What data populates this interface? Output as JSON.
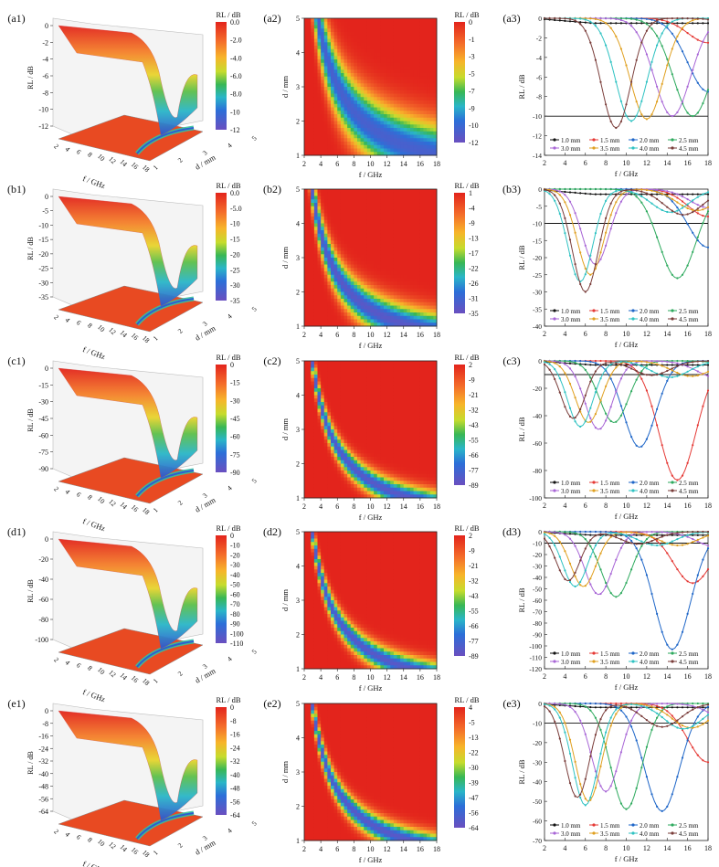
{
  "figure": {
    "panel_labels": {
      "a1": "(a1)",
      "a2": "(a2)",
      "a3": "(a3)",
      "b1": "(b1)",
      "b2": "(b2)",
      "b3": "(b3)",
      "c1": "(c1)",
      "c2": "(c2)",
      "c3": "(c3)",
      "d1": "(d1)",
      "d2": "(d2)",
      "d3": "(d3)",
      "e1": "(e1)",
      "e2": "(e2)",
      "e3": "(e3)"
    },
    "colorbar_title": "RL / dB",
    "xlabel_f": "f / GHz",
    "ylabel_d": "d / mm",
    "ylabel_rl": "RL / dB"
  },
  "chart_data": [
    {
      "id": "a1",
      "type": "surface3d",
      "title": "",
      "xlabel": "f / GHz",
      "ylabel": "d / mm",
      "zlabel": "RL / dB",
      "xticks": [
        "2",
        "4",
        "6",
        "8",
        "10",
        "12",
        "14",
        "16",
        "18"
      ],
      "yticks": [
        "1",
        "2",
        "3",
        "4",
        "5"
      ],
      "zticks": [
        "0",
        "-2",
        "-4",
        "-6",
        "-8",
        "-10",
        "-12"
      ],
      "zlim": [
        -12,
        0
      ],
      "colorbar": {
        "title": "RL / dB",
        "ticks": [
          "0.0",
          "-2.0",
          "-4.0",
          "-6.0",
          "-8.0",
          "-10",
          "-12"
        ]
      }
    },
    {
      "id": "a2",
      "type": "heatmap",
      "xlabel": "f / GHz",
      "ylabel": "d / mm",
      "xticks": [
        "2",
        "4",
        "6",
        "8",
        "10",
        "12",
        "14",
        "16",
        "18"
      ],
      "yticks": [
        "1",
        "2",
        "3",
        "4",
        "5"
      ],
      "xlim": [
        2,
        18
      ],
      "ylim": [
        1,
        5
      ],
      "min_db": -12,
      "colorbar": {
        "title": "RL / dB",
        "ticks": [
          "0",
          "-1",
          "-3",
          "-5",
          "-7",
          "-9",
          "-10",
          "-12"
        ]
      }
    },
    {
      "id": "a3",
      "type": "line",
      "xlabel": "f / GHz",
      "ylabel": "RL / dB",
      "xlim": [
        2,
        18
      ],
      "ylim": [
        -14,
        0
      ],
      "xticks": [
        "2",
        "4",
        "6",
        "8",
        "10",
        "12",
        "14",
        "16",
        "18"
      ],
      "yticks": [
        "0",
        "-2",
        "-4",
        "-6",
        "-8",
        "-10",
        "-12",
        "-14"
      ],
      "reference_line": -10,
      "series": [
        {
          "name": "1.0 mm",
          "f0": null,
          "min": -0.5
        },
        {
          "name": "1.5 mm",
          "f0": 18,
          "min": -2.5
        },
        {
          "name": "2.0 mm",
          "f0": 18,
          "min": -7.5
        },
        {
          "name": "2.5 mm",
          "f0": 16.5,
          "min": -10.0
        },
        {
          "name": "3.0 mm",
          "f0": 14.5,
          "min": -10.0
        },
        {
          "name": "3.5 mm",
          "f0": 12,
          "min": -10.3
        },
        {
          "name": "4.0 mm",
          "f0": 10.5,
          "min": -10.5
        },
        {
          "name": "4.5 mm",
          "f0": 9,
          "min": -11.2
        }
      ]
    },
    {
      "id": "b1",
      "type": "surface3d",
      "xlabel": "f / GHz",
      "ylabel": "d / mm",
      "zlabel": "RL / dB",
      "xticks": [
        "2",
        "4",
        "6",
        "8",
        "10",
        "12",
        "14",
        "16",
        "18"
      ],
      "yticks": [
        "1",
        "2",
        "3",
        "4",
        "5"
      ],
      "zticks": [
        "0",
        "-5",
        "-10",
        "-15",
        "-20",
        "-25",
        "-30",
        "-35"
      ],
      "zlim": [
        -35,
        0
      ],
      "colorbar": {
        "title": "RL / dB",
        "ticks": [
          "0.0",
          "-5.0",
          "-10",
          "-15",
          "-20",
          "-25",
          "-30",
          "-35"
        ]
      }
    },
    {
      "id": "b2",
      "type": "heatmap",
      "xlabel": "f / GHz",
      "ylabel": "d / mm",
      "xticks": [
        "2",
        "4",
        "6",
        "8",
        "10",
        "12",
        "14",
        "16",
        "18"
      ],
      "yticks": [
        "1",
        "2",
        "3",
        "4",
        "5"
      ],
      "xlim": [
        2,
        18
      ],
      "ylim": [
        1,
        5
      ],
      "min_db": -35,
      "colorbar": {
        "title": "RL / dB",
        "ticks": [
          "1",
          "-4",
          "-9",
          "-13",
          "-17",
          "-22",
          "-26",
          "-31",
          "-35"
        ]
      }
    },
    {
      "id": "b3",
      "type": "line",
      "xlabel": "f / GHz",
      "ylabel": "RL / dB",
      "xlim": [
        2,
        18
      ],
      "ylim": [
        -40,
        0
      ],
      "xticks": [
        "2",
        "4",
        "6",
        "8",
        "10",
        "12",
        "14",
        "16",
        "18"
      ],
      "yticks": [
        "0",
        "-5",
        "-10",
        "-15",
        "-20",
        "-25",
        "-30",
        "-35",
        "-40"
      ],
      "reference_line": -10,
      "series": [
        {
          "name": "1.0 mm",
          "f0": null,
          "min": -1.5
        },
        {
          "name": "1.5 mm",
          "f0": 18,
          "min": -8
        },
        {
          "name": "2.0 mm",
          "f0": 18,
          "min": -17
        },
        {
          "name": "2.5 mm",
          "f0": 15,
          "min": -26
        },
        {
          "name": "3.0 mm",
          "f0": 7,
          "min": -22
        },
        {
          "name": "3.5 mm",
          "f0": 6.5,
          "min": -25
        },
        {
          "name": "4.0 mm",
          "f0": 5.5,
          "min": -27
        },
        {
          "name": "4.5 mm",
          "f0": 6,
          "min": -30
        }
      ]
    },
    {
      "id": "c1",
      "type": "surface3d",
      "xlabel": "f / GHz",
      "ylabel": "d / mm",
      "zlabel": "RL / dB",
      "xticks": [
        "2",
        "4",
        "6",
        "8",
        "10",
        "12",
        "14",
        "16",
        "18"
      ],
      "yticks": [
        "1",
        "2",
        "3",
        "4",
        "5"
      ],
      "zticks": [
        "0",
        "-15",
        "-30",
        "-45",
        "-60",
        "-75",
        "-90"
      ],
      "zlim": [
        -90,
        0
      ],
      "colorbar": {
        "title": "RL / dB",
        "ticks": [
          "0",
          "-15",
          "-30",
          "-45",
          "-60",
          "-75",
          "-90"
        ]
      }
    },
    {
      "id": "c2",
      "type": "heatmap",
      "xlabel": "f / GHz",
      "ylabel": "d / mm",
      "xticks": [
        "2",
        "4",
        "6",
        "8",
        "10",
        "12",
        "14",
        "16",
        "18"
      ],
      "yticks": [
        "1",
        "2",
        "3",
        "4",
        "5"
      ],
      "xlim": [
        2,
        18
      ],
      "ylim": [
        1,
        5
      ],
      "min_db": -89,
      "colorbar": {
        "title": "RL / dB",
        "ticks": [
          "2",
          "-9",
          "-21",
          "-32",
          "-43",
          "-55",
          "-66",
          "-77",
          "-89"
        ]
      }
    },
    {
      "id": "c3",
      "type": "line",
      "xlabel": "f / GHz",
      "ylabel": "RL / dB",
      "xlim": [
        2,
        18
      ],
      "ylim": [
        -100,
        0
      ],
      "xticks": [
        "2",
        "4",
        "6",
        "8",
        "10",
        "12",
        "14",
        "16",
        "18"
      ],
      "yticks": [
        "0",
        "-20",
        "-40",
        "-60",
        "-80",
        "-100"
      ],
      "reference_line": -10,
      "series": [
        {
          "name": "1.0 mm",
          "f0": null,
          "min": -3
        },
        {
          "name": "1.5 mm",
          "f0": 15,
          "min": -87
        },
        {
          "name": "2.0 mm",
          "f0": 11.3,
          "min": -63
        },
        {
          "name": "2.5 mm",
          "f0": 8.8,
          "min": -45
        },
        {
          "name": "3.0 mm",
          "f0": 7.3,
          "min": -50
        },
        {
          "name": "3.5 mm",
          "f0": 6.3,
          "min": -45
        },
        {
          "name": "4.0 mm",
          "f0": 5.5,
          "min": -48
        },
        {
          "name": "4.5 mm",
          "f0": 4.8,
          "min": -42
        }
      ]
    },
    {
      "id": "d1",
      "type": "surface3d",
      "xlabel": "f / GHz",
      "ylabel": "d / mm",
      "zlabel": "RL / dB",
      "xticks": [
        "2",
        "4",
        "6",
        "8",
        "10",
        "12",
        "14",
        "16",
        "18"
      ],
      "yticks": [
        "1",
        "2",
        "3",
        "4",
        "5"
      ],
      "zticks": [
        "0",
        "-20",
        "-40",
        "-60",
        "-80",
        "-100"
      ],
      "zlim": [
        -110,
        0
      ],
      "colorbar": {
        "title": "RL / dB",
        "ticks": [
          "0",
          "-10",
          "-20",
          "-30",
          "-40",
          "-50",
          "-60",
          "-70",
          "-80",
          "-90",
          "-100",
          "-110"
        ]
      }
    },
    {
      "id": "d2",
      "type": "heatmap",
      "xlabel": "f / GHz",
      "ylabel": "d / mm",
      "xticks": [
        "2",
        "4",
        "6",
        "8",
        "10",
        "12",
        "14",
        "16",
        "18"
      ],
      "yticks": [
        "1",
        "2",
        "3",
        "4",
        "5"
      ],
      "xlim": [
        2,
        18
      ],
      "ylim": [
        1,
        5
      ],
      "min_db": -89,
      "colorbar": {
        "title": "RL / dB",
        "ticks": [
          "2",
          "-9",
          "-21",
          "-32",
          "-43",
          "-55",
          "-66",
          "-77",
          "-89"
        ]
      }
    },
    {
      "id": "d3",
      "type": "line",
      "xlabel": "f / GHz",
      "ylabel": "RL / dB",
      "xlim": [
        2,
        18
      ],
      "ylim": [
        -120,
        0
      ],
      "xticks": [
        "2",
        "4",
        "6",
        "8",
        "10",
        "12",
        "14",
        "16",
        "18"
      ],
      "yticks": [
        "0",
        "-10",
        "-20",
        "-30",
        "-40",
        "-50",
        "-60",
        "-70",
        "-80",
        "-90",
        "-100",
        "-110",
        "-120"
      ],
      "reference_line": -10,
      "series": [
        {
          "name": "1.0 mm",
          "f0": null,
          "min": -3
        },
        {
          "name": "1.5 mm",
          "f0": 16.5,
          "min": -45
        },
        {
          "name": "2.0 mm",
          "f0": 14.5,
          "min": -103
        },
        {
          "name": "2.5 mm",
          "f0": 9,
          "min": -57
        },
        {
          "name": "3.0 mm",
          "f0": 7.3,
          "min": -55
        },
        {
          "name": "3.5 mm",
          "f0": 5.8,
          "min": -48
        },
        {
          "name": "4.0 mm",
          "f0": 5,
          "min": -48
        },
        {
          "name": "4.5 mm",
          "f0": 4.3,
          "min": -43
        }
      ]
    },
    {
      "id": "e1",
      "type": "surface3d",
      "xlabel": "f / GHz",
      "ylabel": "d / mm",
      "zlabel": "RL / dB",
      "xticks": [
        "2",
        "4",
        "6",
        "8",
        "10",
        "12",
        "14",
        "16",
        "18"
      ],
      "yticks": [
        "1",
        "2",
        "3",
        "4",
        "5"
      ],
      "zticks": [
        "0",
        "-8",
        "-16",
        "-24",
        "-32",
        "-40",
        "-48",
        "-56",
        "-64"
      ],
      "zlim": [
        -64,
        0
      ],
      "colorbar": {
        "title": "RL / dB",
        "ticks": [
          "0",
          "-8",
          "-16",
          "-24",
          "-32",
          "-40",
          "-48",
          "-56",
          "-64"
        ]
      }
    },
    {
      "id": "e2",
      "type": "heatmap",
      "xlabel": "f / GHz",
      "ylabel": "d / mm",
      "xticks": [
        "2",
        "4",
        "6",
        "8",
        "10",
        "12",
        "14",
        "16",
        "18"
      ],
      "yticks": [
        "1",
        "2",
        "3",
        "4",
        "5"
      ],
      "xlim": [
        2,
        18
      ],
      "ylim": [
        1,
        5
      ],
      "min_db": -64,
      "colorbar": {
        "title": "RL / dB",
        "ticks": [
          "4",
          "-5",
          "-13",
          "-22",
          "-30",
          "-39",
          "-47",
          "-56",
          "-64"
        ]
      }
    },
    {
      "id": "e3",
      "type": "line",
      "xlabel": "f / GHz",
      "ylabel": "RL / dB",
      "xlim": [
        2,
        18
      ],
      "ylim": [
        -70,
        0
      ],
      "xticks": [
        "2",
        "4",
        "6",
        "8",
        "10",
        "12",
        "14",
        "16",
        "18"
      ],
      "yticks": [
        "0",
        "-10",
        "-20",
        "-30",
        "-40",
        "-50",
        "-60",
        "-70"
      ],
      "reference_line": -10,
      "series": [
        {
          "name": "1.0 mm",
          "f0": null,
          "min": -2
        },
        {
          "name": "1.5 mm",
          "f0": 18,
          "min": -30
        },
        {
          "name": "2.0 mm",
          "f0": 13.5,
          "min": -55
        },
        {
          "name": "2.5 mm",
          "f0": 10,
          "min": -54
        },
        {
          "name": "3.0 mm",
          "f0": 8,
          "min": -45
        },
        {
          "name": "3.5 mm",
          "f0": 6.3,
          "min": -50
        },
        {
          "name": "4.0 mm",
          "f0": 6,
          "min": -52
        },
        {
          "name": "4.5 mm",
          "f0": 5.2,
          "min": -48
        }
      ]
    }
  ],
  "series_colors": [
    "#111111",
    "#e53935",
    "#1e66c8",
    "#2eaa5e",
    "#a866d6",
    "#e0a020",
    "#2fc2c2",
    "#7a3d3a"
  ]
}
